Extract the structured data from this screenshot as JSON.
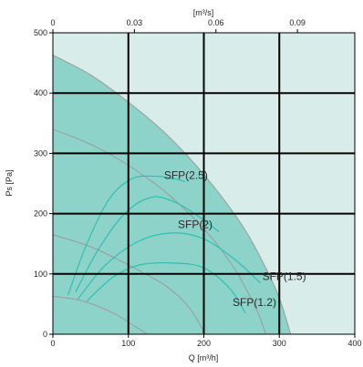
{
  "chart_data": {
    "type": "line",
    "xlabel": "Q [m³/h]",
    "ylabel": "Ps [Pa]",
    "x2label": "[m³/s]",
    "xlim": [
      0,
      400
    ],
    "ylim": [
      0,
      500
    ],
    "x_ticks": [
      "0",
      "100",
      "200",
      "300",
      "400"
    ],
    "y_ticks": [
      "0",
      "100",
      "200",
      "300",
      "400",
      "500"
    ],
    "x2_ticks": [
      "0",
      "0.03",
      "0.06",
      "0.09"
    ],
    "x2_tick_values": [
      0,
      0.03,
      0.06,
      0.09
    ],
    "grid": true,
    "colors": {
      "background": "#d8ecea",
      "operating_area": "#8ed3ca",
      "sfp_curve": "#2ebfb3",
      "speed_curve": "#9a9a9a",
      "grid": "#000000"
    },
    "operating_area_boundary": [
      {
        "x": 0,
        "y": 463
      },
      {
        "x": 50,
        "y": 430
      },
      {
        "x": 100,
        "y": 385
      },
      {
        "x": 150,
        "y": 332
      },
      {
        "x": 200,
        "y": 265
      },
      {
        "x": 250,
        "y": 182
      },
      {
        "x": 280,
        "y": 115
      },
      {
        "x": 300,
        "y": 60
      },
      {
        "x": 315,
        "y": 0
      }
    ],
    "speed_curves": [
      {
        "values": [
          {
            "x": 0,
            "y": 463
          },
          {
            "x": 50,
            "y": 430
          },
          {
            "x": 100,
            "y": 385
          },
          {
            "x": 150,
            "y": 332
          },
          {
            "x": 200,
            "y": 265
          },
          {
            "x": 250,
            "y": 182
          },
          {
            "x": 280,
            "y": 115
          },
          {
            "x": 300,
            "y": 60
          },
          {
            "x": 315,
            "y": 0
          }
        ]
      },
      {
        "values": [
          {
            "x": 0,
            "y": 340
          },
          {
            "x": 50,
            "y": 315
          },
          {
            "x": 100,
            "y": 280
          },
          {
            "x": 150,
            "y": 235
          },
          {
            "x": 200,
            "y": 175
          },
          {
            "x": 240,
            "y": 110
          },
          {
            "x": 270,
            "y": 40
          },
          {
            "x": 282,
            "y": 0
          }
        ]
      },
      {
        "values": [
          {
            "x": 0,
            "y": 165
          },
          {
            "x": 50,
            "y": 145
          },
          {
            "x": 100,
            "y": 115
          },
          {
            "x": 150,
            "y": 80
          },
          {
            "x": 180,
            "y": 45
          },
          {
            "x": 202,
            "y": 0
          }
        ]
      },
      {
        "values": [
          {
            "x": 0,
            "y": 63
          },
          {
            "x": 40,
            "y": 55
          },
          {
            "x": 80,
            "y": 35
          },
          {
            "x": 110,
            "y": 12
          },
          {
            "x": 125,
            "y": 0
          }
        ]
      }
    ],
    "sfp_curves": [
      {
        "label": "SFP(2.5)",
        "values": [
          {
            "x": 20,
            "y": 65
          },
          {
            "x": 45,
            "y": 150
          },
          {
            "x": 75,
            "y": 225
          },
          {
            "x": 105,
            "y": 258
          },
          {
            "x": 135,
            "y": 262
          },
          {
            "x": 160,
            "y": 258
          },
          {
            "x": 175,
            "y": 253
          }
        ]
      },
      {
        "label": "SFP(2)",
        "values": [
          {
            "x": 30,
            "y": 70
          },
          {
            "x": 60,
            "y": 140
          },
          {
            "x": 95,
            "y": 200
          },
          {
            "x": 130,
            "y": 227
          },
          {
            "x": 160,
            "y": 220
          },
          {
            "x": 190,
            "y": 198
          },
          {
            "x": 220,
            "y": 170
          }
        ]
      },
      {
        "label": "SFP(1.5)",
        "values": [
          {
            "x": 33,
            "y": 58
          },
          {
            "x": 70,
            "y": 115
          },
          {
            "x": 115,
            "y": 155
          },
          {
            "x": 160,
            "y": 168
          },
          {
            "x": 200,
            "y": 158
          },
          {
            "x": 240,
            "y": 125
          },
          {
            "x": 275,
            "y": 85
          }
        ]
      },
      {
        "label": "SFP(1.2)",
        "values": [
          {
            "x": 45,
            "y": 55
          },
          {
            "x": 80,
            "y": 95
          },
          {
            "x": 115,
            "y": 115
          },
          {
            "x": 160,
            "y": 118
          },
          {
            "x": 200,
            "y": 110
          },
          {
            "x": 235,
            "y": 75
          },
          {
            "x": 255,
            "y": 35
          }
        ]
      }
    ]
  }
}
